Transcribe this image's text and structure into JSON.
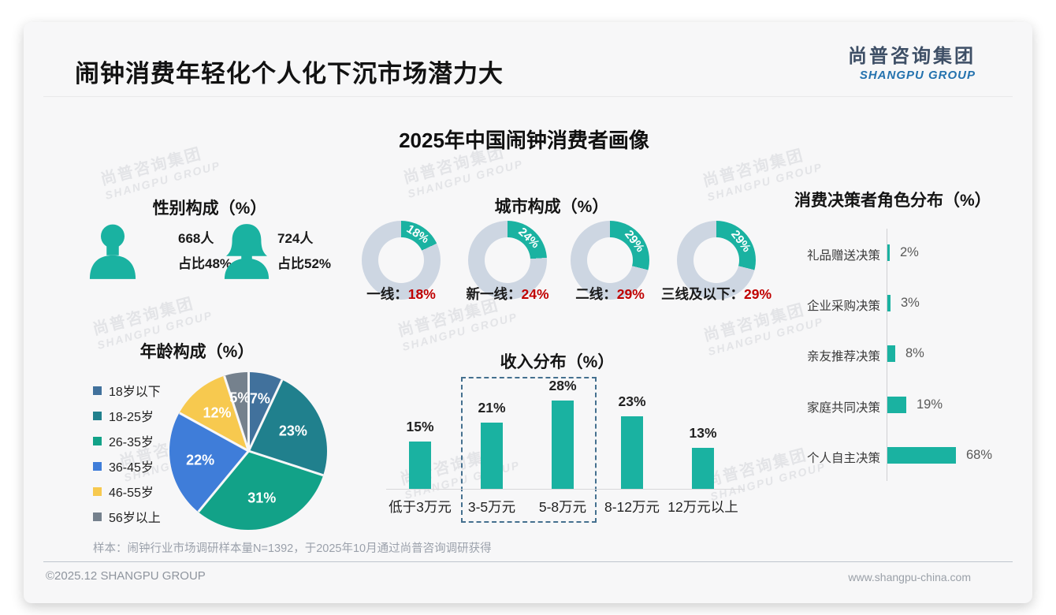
{
  "page": {
    "title": "闹钟消费年轻化个人化下沉市场潜力大",
    "subtitle": "2025年中国闹钟消费者画像",
    "sample_note": "样本：闹钟行业市场调研样本量N=1392，于2025年10月通过尚普咨询调研获得",
    "footer_left": "©2025.12 SHANGPU GROUP",
    "footer_right": "www.shangpu-china.com"
  },
  "logo": {
    "cn": "尚普咨询集团",
    "en": "SHANGPU GROUP"
  },
  "watermark": {
    "cn": "尚普咨询集团",
    "en": "SHANGPU GROUP"
  },
  "colors": {
    "teal": "#1ab2a1",
    "donut_base": "#cdd6e2",
    "red": "#c00000",
    "dashed_box": "#44708f"
  },
  "gender": {
    "title": "性别构成（%）",
    "male_count": "668人",
    "male_share": "占比48%",
    "female_count": "724人",
    "female_share": "占比52%"
  },
  "city": {
    "title": "城市构成（%）",
    "items": [
      {
        "label": "一线：",
        "pct": "18%",
        "value": 18
      },
      {
        "label": "新一线：",
        "pct": "24%",
        "value": 24
      },
      {
        "label": "二线：",
        "pct": "29%",
        "value": 29
      },
      {
        "label": "三线及以下：",
        "pct": "29%",
        "value": 29
      }
    ]
  },
  "decision": {
    "title": "消费决策者角色分布（%）",
    "items": [
      {
        "label": "礼品赠送决策",
        "pct": "2%",
        "value": 2
      },
      {
        "label": "企业采购决策",
        "pct": "3%",
        "value": 3
      },
      {
        "label": "亲友推荐决策",
        "pct": "8%",
        "value": 8
      },
      {
        "label": "家庭共同决策",
        "pct": "19%",
        "value": 19
      },
      {
        "label": "个人自主决策",
        "pct": "68%",
        "value": 68
      }
    ]
  },
  "age": {
    "title": "年龄构成（%）",
    "slices": [
      {
        "label": "18岁以下",
        "pct": "7%",
        "value": 7,
        "color": "#41719c"
      },
      {
        "label": "18-25岁",
        "pct": "23%",
        "value": 23,
        "color": "#20808d"
      },
      {
        "label": "26-35岁",
        "pct": "31%",
        "value": 31,
        "color": "#12a288"
      },
      {
        "label": "36-45岁",
        "pct": "22%",
        "value": 22,
        "color": "#3f7dd9"
      },
      {
        "label": "46-55岁",
        "pct": "12%",
        "value": 12,
        "color": "#f7c94f"
      },
      {
        "label": "56岁以上",
        "pct": "5%",
        "value": 5,
        "color": "#75818d"
      }
    ]
  },
  "income": {
    "title": "收入分布（%）",
    "items": [
      {
        "label": "低于3万元",
        "pct": "15%",
        "value": 15
      },
      {
        "label": "3-5万元",
        "pct": "21%",
        "value": 21
      },
      {
        "label": "5-8万元",
        "pct": "28%",
        "value": 28
      },
      {
        "label": "8-12万元",
        "pct": "23%",
        "value": 23
      },
      {
        "label": "12万元以上",
        "pct": "13%",
        "value": 13
      }
    ]
  },
  "chart_data": [
    {
      "type": "table",
      "title": "性别构成（%）",
      "rows": [
        {
          "gender": "男",
          "count": 668,
          "share_pct": 48
        },
        {
          "gender": "女",
          "count": 724,
          "share_pct": 52
        }
      ]
    },
    {
      "type": "pie",
      "subtype": "four-single-value-donuts",
      "title": "城市构成（%）",
      "categories": [
        "一线",
        "新一线",
        "二线",
        "三线及以下"
      ],
      "values": [
        18,
        24,
        29,
        29
      ],
      "accent_color": "#1ab2a1",
      "track_color": "#cdd6e2"
    },
    {
      "type": "pie",
      "title": "年龄构成（%）",
      "categories": [
        "18岁以下",
        "18-25岁",
        "26-35岁",
        "36-45岁",
        "46-55岁",
        "56岁以上"
      ],
      "values": [
        7,
        23,
        31,
        22,
        12,
        5
      ],
      "colors": [
        "#41719c",
        "#20808d",
        "#12a288",
        "#3f7dd9",
        "#f7c94f",
        "#75818d"
      ],
      "legend_position": "left",
      "start_angle": "12-o'clock, clockwise"
    },
    {
      "type": "bar",
      "title": "收入分布（%）",
      "categories": [
        "低于3万元",
        "3-5万元",
        "5-8万元",
        "8-12万元",
        "12万元以上"
      ],
      "values": [
        15,
        21,
        28,
        23,
        13
      ],
      "ylim": [
        0,
        30
      ],
      "annotation": "dashed box highlighting 3-5万元 and 5-8万元"
    },
    {
      "type": "bar",
      "orientation": "horizontal",
      "title": "消费决策者角色分布（%）",
      "categories": [
        "礼品赠送决策",
        "企业采购决策",
        "亲友推荐决策",
        "家庭共同决策",
        "个人自主决策"
      ],
      "values": [
        2,
        3,
        8,
        19,
        68
      ],
      "xlim": [
        0,
        70
      ]
    }
  ]
}
